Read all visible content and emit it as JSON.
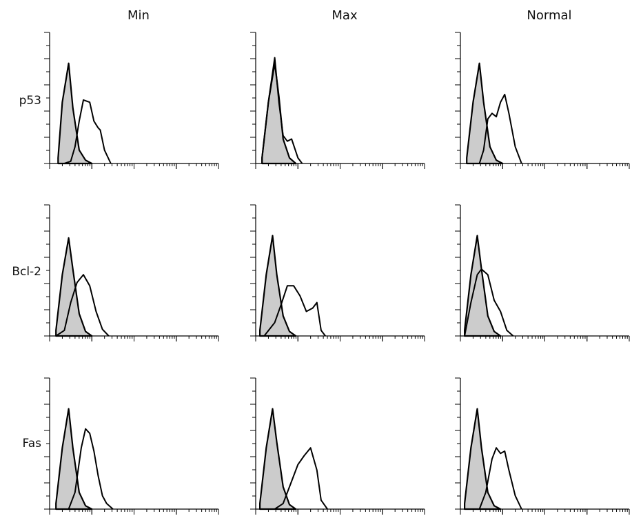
{
  "figure": {
    "columns": [
      "Min",
      "Max",
      "Normal"
    ],
    "rows": [
      "p53",
      "Bcl-2",
      "Fas"
    ]
  },
  "colors": {
    "control_fill": "#cccccc",
    "stroke": "#000000"
  },
  "chart_data": {
    "type": "area",
    "layout": "3x3 grid of flow cytometry histograms",
    "x_scale": "log (4 decades)",
    "grid": false,
    "legend": "none",
    "series_style": {
      "control": "filled grey",
      "stained": "open black line"
    },
    "panels": [
      {
        "row": "p53",
        "column": "Min",
        "series": [
          {
            "role": "control",
            "x": [
              0.2,
              0.3,
              0.45,
              0.55,
              0.7,
              0.85,
              1.0
            ],
            "y": [
              0.05,
              0.55,
              0.9,
              0.5,
              0.12,
              0.03,
              0.0
            ]
          },
          {
            "role": "stained",
            "x": [
              0.35,
              0.5,
              0.6,
              0.7,
              0.8,
              0.95,
              1.05,
              1.15,
              1.2,
              1.3,
              1.45
            ],
            "y": [
              0.0,
              0.02,
              0.15,
              0.38,
              0.57,
              0.55,
              0.38,
              0.32,
              0.3,
              0.12,
              0.0
            ]
          }
        ]
      },
      {
        "row": "p53",
        "column": "Max",
        "series": [
          {
            "role": "control",
            "x": [
              0.15,
              0.3,
              0.45,
              0.55,
              0.65,
              0.8,
              0.95
            ],
            "y": [
              0.05,
              0.55,
              0.9,
              0.6,
              0.22,
              0.05,
              0.0
            ]
          },
          {
            "role": "stained",
            "x": [
              0.15,
              0.3,
              0.45,
              0.55,
              0.65,
              0.75,
              0.85,
              1.0,
              1.1
            ],
            "y": [
              0.05,
              0.55,
              0.95,
              0.55,
              0.25,
              0.2,
              0.22,
              0.05,
              0.0
            ]
          }
        ]
      },
      {
        "row": "p53",
        "column": "Normal",
        "series": [
          {
            "role": "control",
            "x": [
              0.15,
              0.3,
              0.45,
              0.55,
              0.7,
              0.85,
              1.0
            ],
            "y": [
              0.05,
              0.55,
              0.9,
              0.55,
              0.15,
              0.03,
              0.0
            ]
          },
          {
            "role": "stained",
            "x": [
              0.45,
              0.55,
              0.65,
              0.75,
              0.85,
              0.95,
              1.05,
              1.15,
              1.3,
              1.45
            ],
            "y": [
              0.0,
              0.12,
              0.4,
              0.45,
              0.42,
              0.55,
              0.62,
              0.45,
              0.15,
              0.0
            ]
          }
        ]
      },
      {
        "row": "Bcl-2",
        "column": "Min",
        "series": [
          {
            "role": "control",
            "x": [
              0.15,
              0.3,
              0.45,
              0.55,
              0.7,
              0.85,
              1.0
            ],
            "y": [
              0.05,
              0.55,
              0.88,
              0.6,
              0.2,
              0.04,
              0.0
            ]
          },
          {
            "role": "stained",
            "x": [
              0.15,
              0.35,
              0.5,
              0.65,
              0.8,
              0.95,
              1.1,
              1.25,
              1.4
            ],
            "y": [
              0.0,
              0.05,
              0.3,
              0.48,
              0.55,
              0.45,
              0.22,
              0.06,
              0.0
            ]
          }
        ]
      },
      {
        "row": "Bcl-2",
        "column": "Max",
        "series": [
          {
            "role": "control",
            "x": [
              0.1,
              0.25,
              0.4,
              0.5,
              0.65,
              0.8,
              0.95
            ],
            "y": [
              0.05,
              0.55,
              0.9,
              0.55,
              0.18,
              0.04,
              0.0
            ]
          },
          {
            "role": "stained",
            "x": [
              0.2,
              0.45,
              0.6,
              0.75,
              0.9,
              1.05,
              1.2,
              1.35,
              1.45,
              1.55,
              1.65
            ],
            "y": [
              0.0,
              0.12,
              0.28,
              0.45,
              0.45,
              0.36,
              0.22,
              0.25,
              0.3,
              0.05,
              0.0
            ]
          }
        ]
      },
      {
        "row": "Bcl-2",
        "column": "Normal",
        "series": [
          {
            "role": "control",
            "x": [
              0.1,
              0.25,
              0.4,
              0.5,
              0.65,
              0.8,
              0.95
            ],
            "y": [
              0.05,
              0.55,
              0.9,
              0.6,
              0.18,
              0.04,
              0.0
            ]
          },
          {
            "role": "stained",
            "x": [
              0.1,
              0.25,
              0.4,
              0.5,
              0.65,
              0.8,
              0.95,
              1.1,
              1.25
            ],
            "y": [
              0.0,
              0.3,
              0.55,
              0.6,
              0.55,
              0.32,
              0.22,
              0.05,
              0.0
            ]
          }
        ]
      },
      {
        "row": "Fas",
        "column": "Min",
        "series": [
          {
            "role": "control",
            "x": [
              0.15,
              0.3,
              0.45,
              0.55,
              0.7,
              0.85,
              1.0
            ],
            "y": [
              0.05,
              0.55,
              0.9,
              0.55,
              0.15,
              0.03,
              0.0
            ]
          },
          {
            "role": "stained",
            "x": [
              0.45,
              0.6,
              0.75,
              0.85,
              0.95,
              1.05,
              1.15,
              1.25,
              1.35,
              1.5
            ],
            "y": [
              0.0,
              0.15,
              0.55,
              0.72,
              0.68,
              0.52,
              0.3,
              0.12,
              0.05,
              0.0
            ]
          }
        ]
      },
      {
        "row": "Fas",
        "column": "Max",
        "series": [
          {
            "role": "control",
            "x": [
              0.1,
              0.25,
              0.4,
              0.5,
              0.65,
              0.8,
              0.95
            ],
            "y": [
              0.05,
              0.55,
              0.9,
              0.6,
              0.2,
              0.04,
              0.0
            ]
          },
          {
            "role": "stained",
            "x": [
              0.45,
              0.65,
              0.85,
              1.0,
              1.15,
              1.3,
              1.45,
              1.55,
              1.7
            ],
            "y": [
              0.0,
              0.05,
              0.25,
              0.4,
              0.48,
              0.55,
              0.35,
              0.08,
              0.0
            ]
          }
        ]
      },
      {
        "row": "Fas",
        "column": "Normal",
        "series": [
          {
            "role": "control",
            "x": [
              0.1,
              0.25,
              0.4,
              0.5,
              0.65,
              0.8,
              0.95
            ],
            "y": [
              0.05,
              0.55,
              0.9,
              0.55,
              0.15,
              0.03,
              0.0
            ]
          },
          {
            "role": "stained",
            "x": [
              0.45,
              0.6,
              0.75,
              0.85,
              0.95,
              1.05,
              1.15,
              1.3,
              1.45
            ],
            "y": [
              0.0,
              0.15,
              0.45,
              0.55,
              0.5,
              0.52,
              0.35,
              0.12,
              0.0
            ]
          }
        ]
      }
    ]
  }
}
